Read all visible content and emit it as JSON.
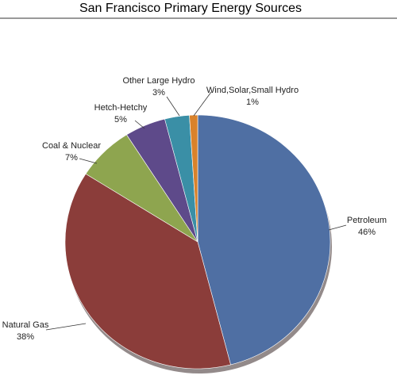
{
  "chart_data": {
    "type": "pie",
    "title": "San Francisco Primary Energy Sources",
    "categories": [
      "Petroleum",
      "Natural Gas",
      "Coal & Nuclear",
      "Hetch-Hetchy",
      "Other Large Hydro",
      "Wind,Solar,Small Hydro"
    ],
    "values": [
      46,
      38,
      7,
      5,
      3,
      1
    ],
    "value_labels": [
      "46%",
      "38%",
      "7%",
      "5%",
      "3%",
      "1%"
    ],
    "colors": [
      "#4f6fa3",
      "#8b3d3a",
      "#8ea54f",
      "#5e4a8a",
      "#3a8fa6",
      "#d9822b"
    ]
  }
}
